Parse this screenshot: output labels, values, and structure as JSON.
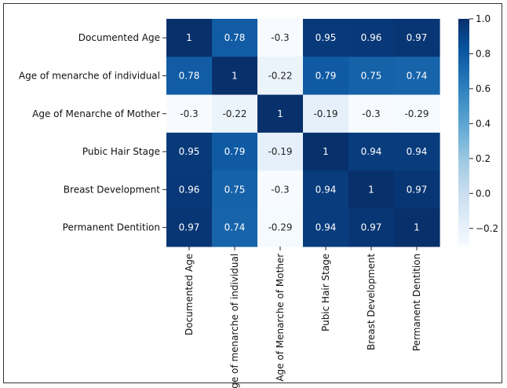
{
  "chart_data": {
    "type": "heatmap",
    "title": "",
    "xlabel": "",
    "ylabel": "",
    "row_labels": [
      "Documented Age",
      "Age of menarche of individual",
      "Age of Menarche of Mother",
      "Pubic Hair Stage",
      "Breast Development",
      "Permanent Dentition"
    ],
    "col_labels": [
      "Documented Age",
      "Age of menarche of individual",
      "Age of Menarche of Mother",
      "Pubic Hair Stage",
      "Breast Development",
      "Permanent Dentition"
    ],
    "values": [
      [
        1,
        0.78,
        -0.3,
        0.95,
        0.96,
        0.97
      ],
      [
        0.78,
        1,
        -0.22,
        0.79,
        0.75,
        0.74
      ],
      [
        -0.3,
        -0.22,
        1,
        -0.19,
        -0.3,
        -0.29
      ],
      [
        0.95,
        0.79,
        -0.19,
        1,
        0.94,
        0.94
      ],
      [
        0.96,
        0.75,
        -0.3,
        0.94,
        1,
        0.97
      ],
      [
        0.97,
        0.74,
        -0.29,
        0.94,
        0.97,
        1
      ]
    ],
    "value_labels": [
      [
        "1",
        "0.78",
        "-0.3",
        "0.95",
        "0.96",
        "0.97"
      ],
      [
        "0.78",
        "1",
        "-0.22",
        "0.79",
        "0.75",
        "0.74"
      ],
      [
        "-0.3",
        "-0.22",
        "1",
        "-0.19",
        "-0.3",
        "-0.29"
      ],
      [
        "0.95",
        "0.79",
        "-0.19",
        "1",
        "0.94",
        "0.94"
      ],
      [
        "0.96",
        "0.75",
        "-0.3",
        "0.94",
        "1",
        "0.97"
      ],
      [
        "0.97",
        "0.74",
        "-0.29",
        "0.94",
        "0.97",
        "1"
      ]
    ],
    "colormap": "Blues",
    "vmin": -0.3,
    "vmax": 1.0,
    "colorbar_ticks": [
      1.0,
      0.8,
      0.6,
      0.4,
      0.2,
      0.0,
      -0.2
    ],
    "colorbar_tick_labels": [
      "1.0",
      "0.8",
      "0.6",
      "0.4",
      "0.2",
      "0.0",
      "−0.2"
    ],
    "colorbar_position": "right",
    "grid": false
  }
}
